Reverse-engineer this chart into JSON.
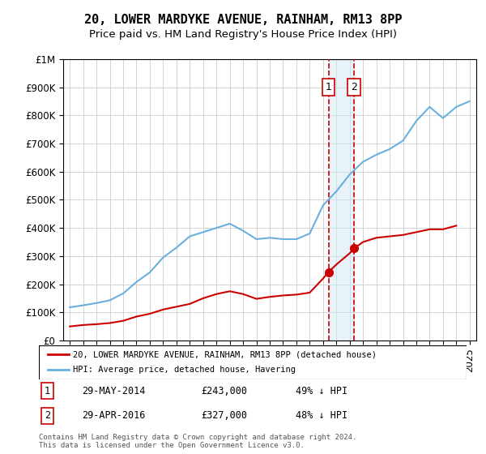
{
  "title": "20, LOWER MARDYKE AVENUE, RAINHAM, RM13 8PP",
  "subtitle": "Price paid vs. HM Land Registry's House Price Index (HPI)",
  "legend_line1": "20, LOWER MARDYKE AVENUE, RAINHAM, RM13 8PP (detached house)",
  "legend_line2": "HPI: Average price, detached house, Havering",
  "footnote": "Contains HM Land Registry data © Crown copyright and database right 2024.\nThis data is licensed under the Open Government Licence v3.0.",
  "sale1_label": "1",
  "sale1_date": "29-MAY-2014",
  "sale1_price": "£243,000",
  "sale1_hpi": "49% ↓ HPI",
  "sale1_year": 2014.41,
  "sale1_value": 243000,
  "sale2_label": "2",
  "sale2_date": "29-APR-2016",
  "sale2_price": "£327,000",
  "sale2_hpi": "48% ↓ HPI",
  "sale2_year": 2016.33,
  "sale2_value": 327000,
  "ylim": [
    0,
    1000000
  ],
  "xlim_start": 1994.5,
  "xlim_end": 2025.5,
  "hpi_color": "#6ab0de",
  "price_color": "#cc0000",
  "dashed_color": "#cc0000",
  "shade_color": "#d0e8f5",
  "title_fontsize": 11,
  "subtitle_fontsize": 9.5,
  "axis_fontsize": 8.5,
  "hpi_years": [
    1995,
    1996,
    1997,
    1998,
    1999,
    2000,
    2001,
    2002,
    2003,
    2004,
    2005,
    2006,
    2007,
    2008,
    2009,
    2010,
    2011,
    2012,
    2013,
    2014,
    2015,
    2016,
    2017,
    2018,
    2019,
    2020,
    2021,
    2022,
    2023,
    2024,
    2025
  ],
  "hpi_values": [
    118000,
    125000,
    133000,
    143000,
    167000,
    208000,
    242000,
    295000,
    330000,
    370000,
    385000,
    400000,
    415000,
    390000,
    360000,
    365000,
    360000,
    360000,
    380000,
    480000,
    530000,
    590000,
    635000,
    660000,
    680000,
    710000,
    780000,
    830000,
    790000,
    830000,
    850000
  ],
  "red_years": [
    1995,
    1996,
    1997,
    1998,
    1999,
    2000,
    2001,
    2002,
    2003,
    2004,
    2005,
    2006,
    2007,
    2008,
    2009,
    2010,
    2011,
    2012,
    2013,
    2014,
    2014.41,
    2015,
    2016,
    2016.33,
    2017,
    2018,
    2019,
    2020,
    2021,
    2022,
    2023,
    2024
  ],
  "red_values": [
    50000,
    55000,
    58000,
    62000,
    70000,
    85000,
    95000,
    110000,
    120000,
    130000,
    150000,
    165000,
    175000,
    165000,
    148000,
    155000,
    160000,
    163000,
    170000,
    220000,
    243000,
    270000,
    310000,
    327000,
    350000,
    365000,
    370000,
    375000,
    385000,
    395000,
    395000,
    408000
  ]
}
